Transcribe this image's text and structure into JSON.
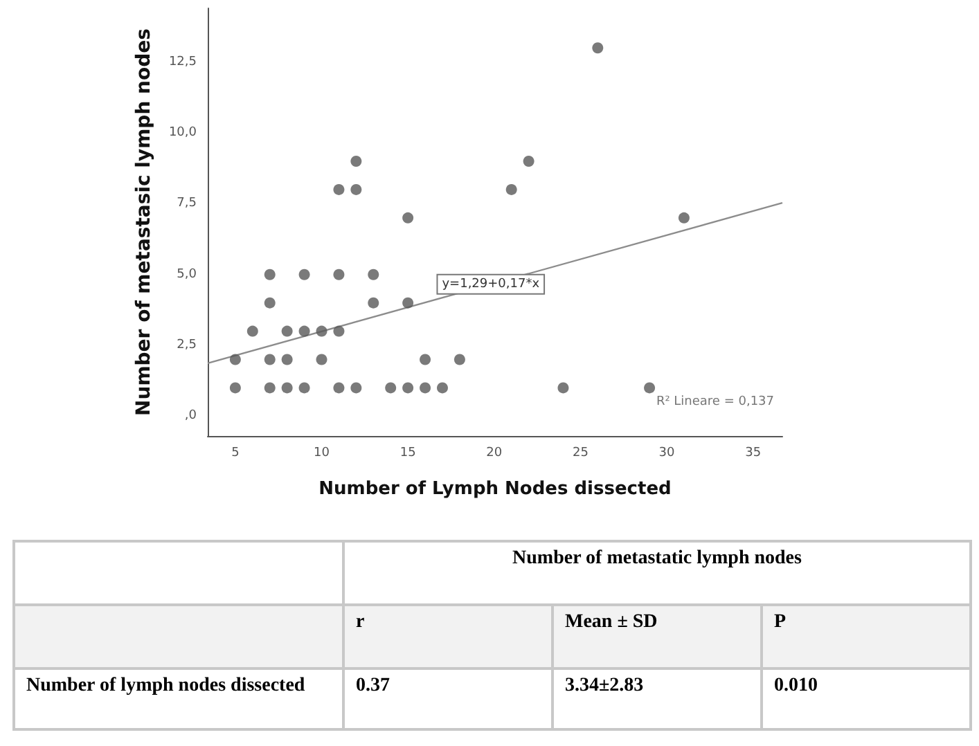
{
  "chart_data": {
    "type": "scatter",
    "xlabel": "Number of Lymph Nodes dissected",
    "ylabel": "Number of metastasic lymph nodes",
    "xlim": [
      3.4,
      36.7
    ],
    "ylim": [
      -0.7,
      14.4
    ],
    "xticks": [
      5,
      10,
      15,
      20,
      25,
      30,
      35
    ],
    "yticks": [
      {
        "value": 0,
        "label": ",0"
      },
      {
        "value": 2.5,
        "label": "2,5"
      },
      {
        "value": 5,
        "label": "5,0"
      },
      {
        "value": 7.5,
        "label": "7,5"
      },
      {
        "value": 10,
        "label": "10,0"
      },
      {
        "value": 12.5,
        "label": "12,5"
      }
    ],
    "grid": false,
    "marker": "circle",
    "series": [
      {
        "type": "scatter",
        "color": "#595959",
        "x": [
          5,
          7,
          8,
          9,
          11,
          12,
          14,
          15,
          16,
          17,
          24,
          29,
          5,
          7,
          8,
          10,
          16,
          18,
          6,
          8,
          9,
          10,
          11,
          7,
          13,
          15,
          7,
          9,
          11,
          13,
          15,
          11,
          12,
          21,
          12,
          22,
          26,
          31
        ],
        "values": [
          1,
          1,
          1,
          1,
          1,
          1,
          1,
          1,
          1,
          1,
          1,
          1,
          2,
          2,
          2,
          2,
          2,
          2,
          3,
          3,
          3,
          3,
          3,
          4,
          4,
          4,
          5,
          5,
          5,
          5,
          7,
          8,
          8,
          8,
          9,
          9,
          13,
          7
        ]
      },
      {
        "type": "line",
        "color": "#8c8c8c",
        "marker": "none",
        "x": [
          3.4,
          36.7
        ],
        "values": [
          1.87,
          7.53
        ]
      }
    ],
    "annotations": [
      {
        "text": "y=1,29+0,17*x",
        "x": 19.8,
        "y": 4.66
      },
      "R² Lineare = 0,137",
      "Number of metastatic lymph nodes",
      "r",
      "Mean ± SD",
      "P",
      "Number of lymph nodes dissected",
      "0.37",
      "3.34±2.83",
      "0.010"
    ]
  }
}
